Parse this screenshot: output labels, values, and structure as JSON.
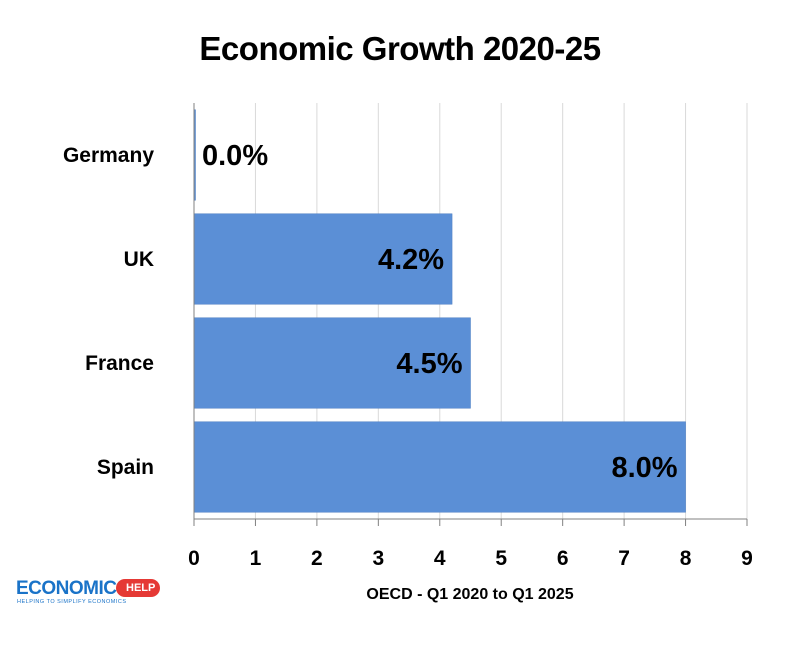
{
  "chart_data": {
    "type": "bar",
    "orientation": "horizontal",
    "title": "Economic Growth 2020-25",
    "xlabel": "OECD - Q1 2020 to Q1 2025",
    "ylabel": "",
    "categories": [
      "Germany",
      "UK",
      "France",
      "Spain"
    ],
    "values": [
      0.0,
      4.2,
      4.5,
      8.0
    ],
    "data_labels": [
      "0.0%",
      "4.2%",
      "4.5%",
      "8.0%"
    ],
    "xlim": [
      0,
      9
    ],
    "x_ticks": [
      "0",
      "1",
      "2",
      "3",
      "4",
      "5",
      "6",
      "7",
      "8",
      "9"
    ],
    "grid": "vertical",
    "bar_color": "#5b8fd6",
    "legend": "none"
  },
  "logo": {
    "main": "ECONOMICS",
    "badge": "HELP",
    "tagline": "HELPING TO SIMPLIFY ECONOMICS"
  }
}
